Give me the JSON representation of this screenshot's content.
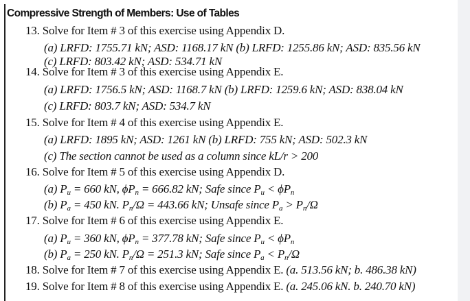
{
  "title": "Compressive Strength of Members: Use of Tables",
  "lines": [
    {
      "kind": "q",
      "segments": [
        {
          "t": "13. Solve for Item # 3 of this exercise using Appendix D."
        }
      ]
    },
    {
      "kind": "a",
      "segments": [
        {
          "t": "(a) LRFD: 1755.71 kN; ASD: 1168.17 kN (b) LRFD: 1255.86 kN; ASD: 835.56 kN"
        }
      ]
    },
    {
      "kind": "a",
      "segments": [
        {
          "t": "(c) LRFD: 803.42 kN; ASD: 534.71 kN"
        }
      ]
    },
    {
      "kind": "q",
      "segments": [
        {
          "t": "14. Solve for Item # 3 of this exercise using Appendix E."
        }
      ]
    },
    {
      "kind": "a",
      "segments": [
        {
          "t": "(a) LRFD: 1756.5 kN; ASD: 1168.7 kN (b) LRFD: 1259.6 kN; ASD: 838.04 kN"
        }
      ]
    },
    {
      "kind": "a",
      "segments": [
        {
          "t": "(c) LRFD: 803.7 kN; ASD: 534.7 kN"
        }
      ]
    },
    {
      "kind": "q",
      "segments": [
        {
          "t": "15. Solve for Item # 4 of this exercise using Appendix E."
        }
      ]
    },
    {
      "kind": "a",
      "segments": [
        {
          "t": "(a) LRFD: 1895 kN; ASD: 1261 kN (b) LRFD: 755 kN; ASD: 502.3 kN"
        }
      ]
    },
    {
      "kind": "a",
      "segments": [
        {
          "t": "(c) The section cannot be used as a column since kL/r > 200"
        }
      ]
    },
    {
      "kind": "q",
      "segments": [
        {
          "t": "16. Solve for Item # 5 of this exercise using Appendix D."
        }
      ]
    },
    {
      "kind": "a",
      "segments": [
        {
          "t": "(a) P"
        },
        {
          "sub": "u"
        },
        {
          "t": " = 660 kN, ϕP"
        },
        {
          "sub": "n"
        },
        {
          "t": " = 666.82 kN; Safe since P"
        },
        {
          "sub": "u"
        },
        {
          "t": " < ϕP"
        },
        {
          "sub": "n"
        }
      ]
    },
    {
      "kind": "a",
      "segments": [
        {
          "t": "(b) P"
        },
        {
          "sub": "a"
        },
        {
          "t": " = 450 kN. P"
        },
        {
          "sub": "n"
        },
        {
          "t": "/Ω = 443.66 kN; Unsafe since P"
        },
        {
          "sub": "a"
        },
        {
          "t": " > P"
        },
        {
          "sub": "n"
        },
        {
          "t": "/Ω"
        }
      ]
    },
    {
      "kind": "q",
      "segments": [
        {
          "t": "17. Solve for Item # 6 of this exercise using Appendix E."
        }
      ]
    },
    {
      "kind": "a",
      "segments": [
        {
          "t": "(a) P"
        },
        {
          "sub": "u"
        },
        {
          "t": " = 360 kN, ϕP"
        },
        {
          "sub": "n"
        },
        {
          "t": " = 377.78 kN; Safe since P"
        },
        {
          "sub": "u"
        },
        {
          "t": " < ϕP"
        },
        {
          "sub": "n"
        }
      ]
    },
    {
      "kind": "a",
      "segments": [
        {
          "t": "(b) P"
        },
        {
          "sub": "a"
        },
        {
          "t": " = 250 kN. P"
        },
        {
          "sub": "n"
        },
        {
          "t": "/Ω = 251.3 kN; Safe since P"
        },
        {
          "sub": "a"
        },
        {
          "t": " < P"
        },
        {
          "sub": "n"
        },
        {
          "t": "/Ω"
        }
      ]
    },
    {
      "kind": "q",
      "segments": [
        {
          "t": "18. Solve for Item # 7 of this exercise using Appendix E. "
        },
        {
          "i": "(a. 513.56 kN; b. 486.38 kN)"
        }
      ]
    },
    {
      "kind": "q",
      "segments": [
        {
          "t": "19. Solve for Item # 8 of this exercise using Appendix E. "
        },
        {
          "i": "(a. 245.06 kN. b. 240.70 kN)"
        }
      ]
    }
  ]
}
